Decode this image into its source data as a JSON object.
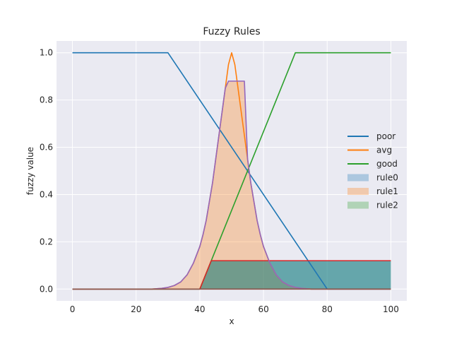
{
  "chart_data": {
    "type": "area",
    "title": "Fuzzy Rules",
    "xlabel": "x",
    "ylabel": "fuzzy value",
    "xlim": [
      -5,
      105
    ],
    "ylim": [
      -0.05,
      1.05
    ],
    "xticks": [
      0,
      20,
      40,
      60,
      80,
      100
    ],
    "yticks": [
      0.0,
      0.2,
      0.4,
      0.6,
      0.8,
      1.0
    ],
    "xtick_labels": [
      "0",
      "20",
      "40",
      "60",
      "80",
      "100"
    ],
    "ytick_labels": [
      "0.0",
      "0.2",
      "0.4",
      "0.6",
      "0.8",
      "1.0"
    ],
    "grid": true,
    "background": "#eaeaf2",
    "legend_position": "center-right",
    "series": [
      {
        "name": "poor",
        "kind": "line",
        "color": "#1f77b4",
        "x": [
          0,
          30,
          80,
          100
        ],
        "y": [
          1.0,
          1.0,
          0.0,
          0.0
        ]
      },
      {
        "name": "avg",
        "kind": "line",
        "color": "#ff7f0e",
        "x": [
          0,
          10,
          20,
          25,
          28,
          30,
          32,
          34,
          36,
          38,
          40,
          41,
          42,
          43,
          44,
          45,
          46,
          47,
          48,
          49,
          50,
          51,
          52,
          53,
          54,
          55,
          56,
          57,
          58,
          59,
          60,
          62,
          64,
          66,
          68,
          70,
          72,
          75,
          80,
          90,
          100
        ],
        "y": [
          0.0,
          0.0,
          0.0,
          0.0,
          0.003,
          0.007,
          0.015,
          0.03,
          0.06,
          0.11,
          0.18,
          0.23,
          0.29,
          0.37,
          0.45,
          0.55,
          0.65,
          0.75,
          0.85,
          0.95,
          1.0,
          0.95,
          0.85,
          0.75,
          0.65,
          0.55,
          0.45,
          0.37,
          0.29,
          0.23,
          0.18,
          0.11,
          0.06,
          0.03,
          0.015,
          0.007,
          0.003,
          0.0,
          0.0,
          0.0,
          0.0
        ]
      },
      {
        "name": "good",
        "kind": "line",
        "color": "#2ca02c",
        "x": [
          0,
          40,
          70,
          100
        ],
        "y": [
          0.0,
          0.0,
          1.0,
          1.0
        ]
      },
      {
        "name": "rule0",
        "kind": "fill",
        "color": "#1f77b4",
        "opacity": 0.3,
        "x": [
          0,
          40,
          43.6,
          100
        ],
        "y": [
          0.0,
          0.0,
          0.12,
          0.12
        ]
      },
      {
        "name": "rule1",
        "kind": "fill",
        "color": "#ff7f0e",
        "opacity": 0.3,
        "x": [
          0,
          10,
          20,
          25,
          28,
          30,
          32,
          34,
          36,
          38,
          40,
          41,
          42,
          43,
          44,
          45,
          46,
          47,
          48,
          49,
          54,
          55,
          56,
          57,
          58,
          59,
          60,
          62,
          64,
          66,
          68,
          70,
          72,
          75,
          80,
          90,
          100
        ],
        "y": [
          0.0,
          0.0,
          0.0,
          0.0,
          0.003,
          0.007,
          0.015,
          0.03,
          0.06,
          0.11,
          0.18,
          0.23,
          0.29,
          0.37,
          0.45,
          0.55,
          0.65,
          0.75,
          0.85,
          0.88,
          0.88,
          0.55,
          0.45,
          0.37,
          0.29,
          0.23,
          0.18,
          0.11,
          0.06,
          0.03,
          0.015,
          0.007,
          0.003,
          0.0,
          0.0,
          0.0,
          0.0
        ]
      },
      {
        "name": "rule2",
        "kind": "fill",
        "color": "#2ca02c",
        "opacity": 0.3,
        "x": [
          0,
          40,
          43.6,
          100
        ],
        "y": [
          0.0,
          0.0,
          0.12,
          0.12
        ]
      }
    ],
    "outlines": [
      {
        "color": "#d62728",
        "x": [
          0,
          40,
          43.6,
          100
        ],
        "y": [
          0.0,
          0.0,
          0.12,
          0.12
        ]
      },
      {
        "color": "#9467bd",
        "x": [
          0,
          10,
          20,
          25,
          28,
          30,
          32,
          34,
          36,
          38,
          40,
          41,
          42,
          43,
          44,
          45,
          46,
          47,
          48,
          49,
          54,
          55,
          56,
          57,
          58,
          59,
          60,
          62,
          64,
          66,
          68,
          70,
          72,
          75,
          80,
          90,
          100
        ],
        "y": [
          0.0,
          0.0,
          0.0,
          0.0,
          0.003,
          0.007,
          0.015,
          0.03,
          0.06,
          0.11,
          0.18,
          0.23,
          0.29,
          0.37,
          0.45,
          0.55,
          0.65,
          0.75,
          0.85,
          0.88,
          0.88,
          0.55,
          0.45,
          0.37,
          0.29,
          0.23,
          0.18,
          0.11,
          0.06,
          0.03,
          0.015,
          0.007,
          0.003,
          0.0,
          0.0,
          0.0,
          0.0
        ]
      },
      {
        "color": "#8c564b",
        "x": [
          0,
          100
        ],
        "y": [
          0.0,
          0.0
        ]
      }
    ],
    "extra_fills": [
      {
        "color": "#1f77b4",
        "opacity": 0.3,
        "x": [
          40,
          43.6,
          100,
          100,
          80,
          43.6
        ],
        "y": [
          0.0,
          0.12,
          0.12,
          0.0,
          0.0,
          0.0
        ]
      }
    ]
  }
}
